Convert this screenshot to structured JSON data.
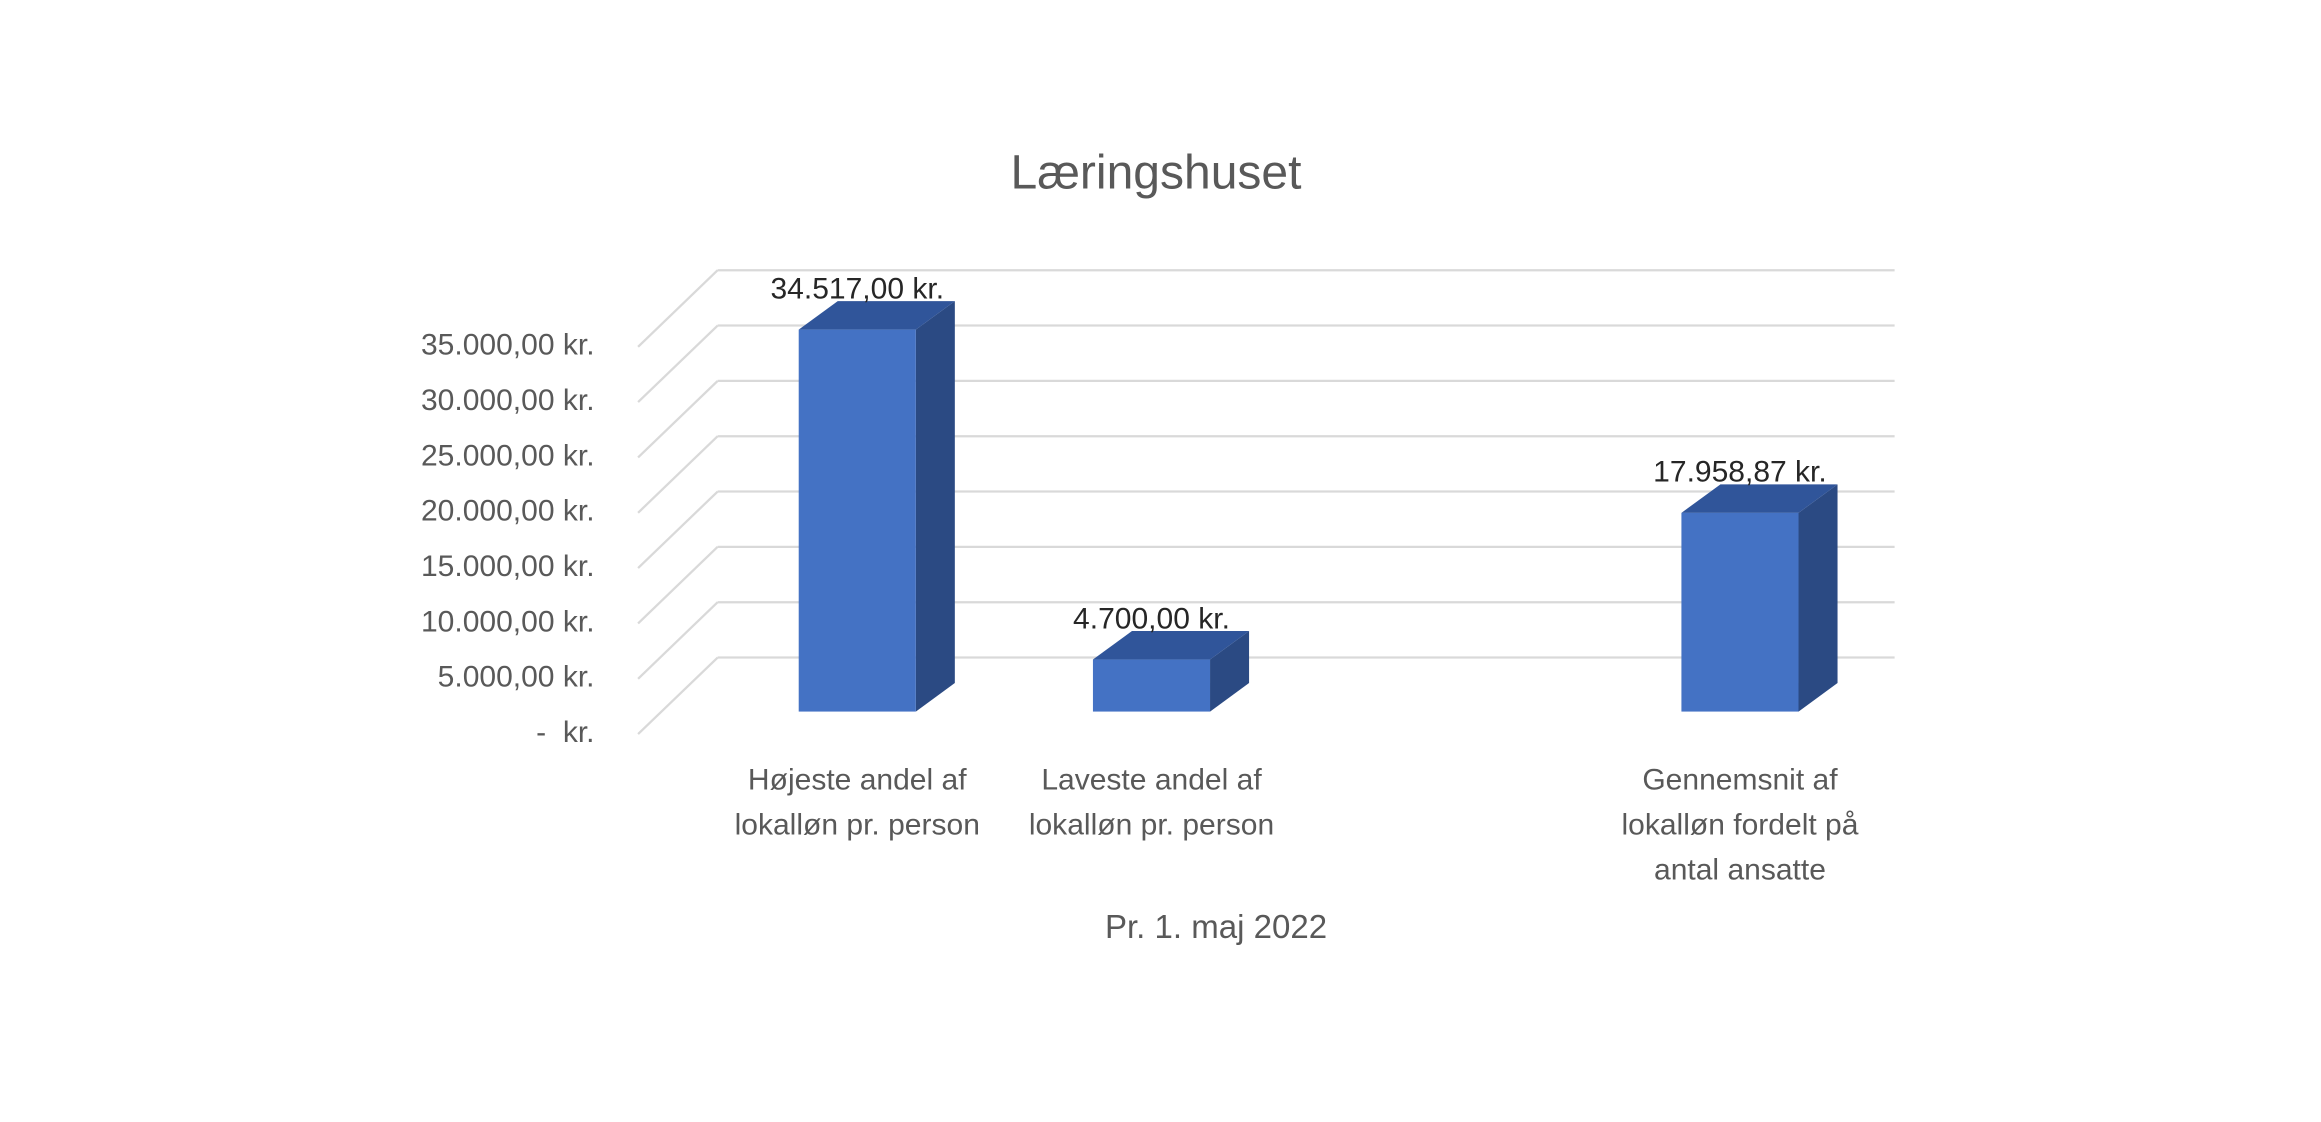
{
  "chart_data": {
    "type": "bar3d",
    "title": "Læringshuset",
    "x_label": "Pr. 1. maj 2022",
    "categories": [
      "Højeste andel af lokalløn pr. person",
      "Laveste andel af lokalløn pr. person",
      null,
      "Gennemsnit af lokalløn fordelt på antal ansatte"
    ],
    "values": [
      34517,
      4700,
      null,
      17958.87
    ],
    "value_labels": [
      "34.517,00 kr.",
      "4.700,00 kr.",
      null,
      "17.958,87 kr."
    ],
    "color": "#4472c4",
    "ylim": [
      0,
      35000
    ],
    "yticks": [
      {
        "value": 0,
        "label": "-  kr."
      },
      {
        "value": 5000,
        "label": "5.000,00 kr."
      },
      {
        "value": 10000,
        "label": "10.000,00 kr."
      },
      {
        "value": 15000,
        "label": "15.000,00 kr."
      },
      {
        "value": 20000,
        "label": "20.000,00 kr."
      },
      {
        "value": 25000,
        "label": "25.000,00 kr."
      },
      {
        "value": 30000,
        "label": "30.000,00 kr."
      },
      {
        "value": 35000,
        "label": "35.000,00 kr."
      }
    ],
    "grid": true
  }
}
